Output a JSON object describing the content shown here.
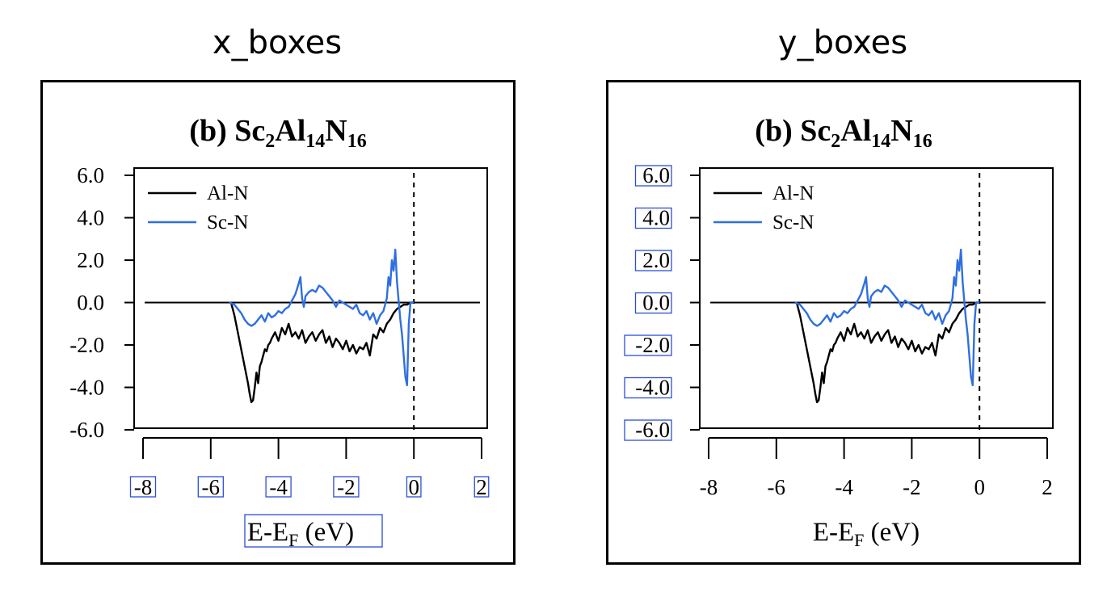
{
  "panels": {
    "left_label": "x_boxes",
    "right_label": "y_boxes"
  },
  "colors": {
    "al_n": "#000000",
    "sc_n": "#2f6fe0",
    "box": "#2b4fd8"
  },
  "chart_data": [
    {
      "type": "line",
      "title": "(b) Sc2Al14N16",
      "title_parts": {
        "prefix": "(b) ",
        "t1": "Sc",
        "s1": "2",
        "t2": "Al",
        "s2": "14",
        "t3": "N",
        "s3": "16"
      },
      "xlabel": "E-EF (eV)",
      "xlabel_parts": {
        "main": "E-E",
        "sub": "F",
        "unit": " (eV)"
      },
      "ylabel": "",
      "xlim": [
        -8,
        2
      ],
      "ylim": [
        -6,
        6
      ],
      "xticks": [
        -8,
        -6,
        -4,
        -2,
        0,
        2
      ],
      "xtick_labels": [
        "-8",
        "-6",
        "-4",
        "-2",
        "0",
        "2"
      ],
      "yticks": [
        6,
        4,
        2,
        0,
        -2,
        -4,
        -6
      ],
      "ytick_labels": [
        "6.0",
        "4.0",
        "2.0",
        "0.0",
        "-2.0",
        "-4.0",
        "-6.0"
      ],
      "legend": "top-left",
      "grid": false,
      "highlighted_labels": "x",
      "zero_line": {
        "x_range": [
          -8,
          2
        ],
        "y": 0
      },
      "fermi_line_x": 0,
      "series": [
        {
          "name": "Al-N",
          "x": [
            -5.4,
            -5.3,
            -5.2,
            -5.1,
            -5.0,
            -4.9,
            -4.85,
            -4.8,
            -4.75,
            -4.7,
            -4.65,
            -4.6,
            -4.55,
            -4.5,
            -4.45,
            -4.4,
            -4.35,
            -4.3,
            -4.25,
            -4.2,
            -4.1,
            -4.0,
            -3.9,
            -3.8,
            -3.7,
            -3.6,
            -3.5,
            -3.4,
            -3.3,
            -3.2,
            -3.1,
            -3.0,
            -2.9,
            -2.8,
            -2.7,
            -2.6,
            -2.5,
            -2.4,
            -2.3,
            -2.2,
            -2.1,
            -2.0,
            -1.9,
            -1.8,
            -1.7,
            -1.6,
            -1.5,
            -1.4,
            -1.3,
            -1.2,
            -1.1,
            -1.0,
            -0.9,
            -0.8,
            -0.7,
            -0.6,
            -0.5,
            -0.4,
            -0.3,
            -0.2,
            -0.1,
            0.0
          ],
          "y": [
            0.0,
            -0.6,
            -1.4,
            -2.2,
            -3.0,
            -3.8,
            -4.3,
            -4.7,
            -4.6,
            -4.0,
            -3.3,
            -3.8,
            -3.0,
            -2.8,
            -2.5,
            -2.2,
            -2.3,
            -2.0,
            -1.9,
            -1.7,
            -1.4,
            -1.8,
            -1.2,
            -1.5,
            -1.0,
            -1.6,
            -1.4,
            -1.7,
            -1.3,
            -1.9,
            -1.6,
            -1.4,
            -1.8,
            -1.5,
            -1.3,
            -1.9,
            -1.6,
            -2.1,
            -1.7,
            -1.9,
            -2.2,
            -1.8,
            -2.3,
            -2.0,
            -2.4,
            -2.1,
            -2.2,
            -1.9,
            -2.5,
            -1.5,
            -1.7,
            -1.2,
            -1.4,
            -1.0,
            -0.8,
            -0.5,
            -0.3,
            -0.2,
            -0.1,
            -0.1,
            0.0,
            0.0
          ]
        },
        {
          "name": "Sc-N",
          "x": [
            -5.45,
            -5.3,
            -5.2,
            -5.1,
            -5.0,
            -4.9,
            -4.8,
            -4.7,
            -4.6,
            -4.5,
            -4.4,
            -4.3,
            -4.2,
            -4.1,
            -4.0,
            -3.9,
            -3.8,
            -3.7,
            -3.6,
            -3.5,
            -3.4,
            -3.35,
            -3.3,
            -3.25,
            -3.2,
            -3.1,
            -3.0,
            -2.9,
            -2.8,
            -2.7,
            -2.6,
            -2.5,
            -2.4,
            -2.3,
            -2.2,
            -2.1,
            -2.0,
            -1.9,
            -1.8,
            -1.7,
            -1.6,
            -1.5,
            -1.4,
            -1.3,
            -1.2,
            -1.1,
            -1.0,
            -0.9,
            -0.8,
            -0.75,
            -0.7,
            -0.65,
            -0.6,
            -0.55,
            -0.5,
            -0.45,
            -0.4,
            -0.35,
            -0.3,
            -0.25,
            -0.2,
            -0.15,
            -0.1,
            0.0
          ],
          "y": [
            0.0,
            -0.1,
            -0.3,
            -0.5,
            -0.8,
            -1.0,
            -1.1,
            -1.0,
            -0.8,
            -0.6,
            -0.9,
            -0.5,
            -0.7,
            -0.6,
            -0.4,
            -0.5,
            -0.3,
            -0.2,
            0.1,
            0.4,
            0.9,
            1.2,
            0.2,
            -0.2,
            0.3,
            0.5,
            0.6,
            0.5,
            0.8,
            0.7,
            0.5,
            0.3,
            0.1,
            -0.2,
            0.1,
            0.0,
            -0.1,
            -0.2,
            -0.3,
            -0.1,
            -0.5,
            -0.6,
            -0.4,
            -0.8,
            -0.5,
            -1.0,
            -0.6,
            -0.4,
            0.2,
            1.2,
            0.8,
            2.0,
            1.5,
            2.5,
            1.0,
            0.1,
            -0.8,
            -1.5,
            -2.5,
            -3.5,
            -3.9,
            -1.0,
            0.0,
            0.0
          ]
        }
      ]
    },
    {
      "type": "line",
      "title": "(b) Sc2Al14N16",
      "title_parts": {
        "prefix": "(b) ",
        "t1": "Sc",
        "s1": "2",
        "t2": "Al",
        "s2": "14",
        "t3": "N",
        "s3": "16"
      },
      "xlabel": "E-EF (eV)",
      "xlabel_parts": {
        "main": "E-E",
        "sub": "F",
        "unit": " (eV)"
      },
      "ylabel": "",
      "xlim": [
        -8,
        2
      ],
      "ylim": [
        -6,
        6
      ],
      "xticks": [
        -8,
        -6,
        -4,
        -2,
        0,
        2
      ],
      "xtick_labels": [
        "-8",
        "-6",
        "-4",
        "-2",
        "0",
        "2"
      ],
      "yticks": [
        6,
        4,
        2,
        0,
        -2,
        -4,
        -6
      ],
      "ytick_labels": [
        "6.0",
        "4.0",
        "2.0",
        "0.0",
        "-2.0",
        "-4.0",
        "-6.0"
      ],
      "legend": "top-left",
      "grid": false,
      "highlighted_labels": "y",
      "zero_line": {
        "x_range": [
          -8,
          2
        ],
        "y": 0
      },
      "fermi_line_x": 0,
      "series": [
        {
          "name": "Al-N",
          "x": [
            -5.4,
            -5.3,
            -5.2,
            -5.1,
            -5.0,
            -4.9,
            -4.85,
            -4.8,
            -4.75,
            -4.7,
            -4.65,
            -4.6,
            -4.55,
            -4.5,
            -4.45,
            -4.4,
            -4.35,
            -4.3,
            -4.25,
            -4.2,
            -4.1,
            -4.0,
            -3.9,
            -3.8,
            -3.7,
            -3.6,
            -3.5,
            -3.4,
            -3.3,
            -3.2,
            -3.1,
            -3.0,
            -2.9,
            -2.8,
            -2.7,
            -2.6,
            -2.5,
            -2.4,
            -2.3,
            -2.2,
            -2.1,
            -2.0,
            -1.9,
            -1.8,
            -1.7,
            -1.6,
            -1.5,
            -1.4,
            -1.3,
            -1.2,
            -1.1,
            -1.0,
            -0.9,
            -0.8,
            -0.7,
            -0.6,
            -0.5,
            -0.4,
            -0.3,
            -0.2,
            -0.1,
            0.0
          ],
          "y": [
            0.0,
            -0.6,
            -1.4,
            -2.2,
            -3.0,
            -3.8,
            -4.3,
            -4.7,
            -4.6,
            -4.0,
            -3.3,
            -3.8,
            -3.0,
            -2.8,
            -2.5,
            -2.2,
            -2.3,
            -2.0,
            -1.9,
            -1.7,
            -1.4,
            -1.8,
            -1.2,
            -1.5,
            -1.0,
            -1.6,
            -1.4,
            -1.7,
            -1.3,
            -1.9,
            -1.6,
            -1.4,
            -1.8,
            -1.5,
            -1.3,
            -1.9,
            -1.6,
            -2.1,
            -1.7,
            -1.9,
            -2.2,
            -1.8,
            -2.3,
            -2.0,
            -2.4,
            -2.1,
            -2.2,
            -1.9,
            -2.5,
            -1.5,
            -1.7,
            -1.2,
            -1.4,
            -1.0,
            -0.8,
            -0.5,
            -0.3,
            -0.2,
            -0.1,
            -0.1,
            0.0,
            0.0
          ]
        },
        {
          "name": "Sc-N",
          "x": [
            -5.45,
            -5.3,
            -5.2,
            -5.1,
            -5.0,
            -4.9,
            -4.8,
            -4.7,
            -4.6,
            -4.5,
            -4.4,
            -4.3,
            -4.2,
            -4.1,
            -4.0,
            -3.9,
            -3.8,
            -3.7,
            -3.6,
            -3.5,
            -3.4,
            -3.35,
            -3.3,
            -3.25,
            -3.2,
            -3.1,
            -3.0,
            -2.9,
            -2.8,
            -2.7,
            -2.6,
            -2.5,
            -2.4,
            -2.3,
            -2.2,
            -2.1,
            -2.0,
            -1.9,
            -1.8,
            -1.7,
            -1.6,
            -1.5,
            -1.4,
            -1.3,
            -1.2,
            -1.1,
            -1.0,
            -0.9,
            -0.8,
            -0.75,
            -0.7,
            -0.65,
            -0.6,
            -0.55,
            -0.5,
            -0.45,
            -0.4,
            -0.35,
            -0.3,
            -0.25,
            -0.2,
            -0.15,
            -0.1,
            0.0
          ],
          "y": [
            0.0,
            -0.1,
            -0.3,
            -0.5,
            -0.8,
            -1.0,
            -1.1,
            -1.0,
            -0.8,
            -0.6,
            -0.9,
            -0.5,
            -0.7,
            -0.6,
            -0.4,
            -0.5,
            -0.3,
            -0.2,
            0.1,
            0.4,
            0.9,
            1.2,
            0.2,
            -0.2,
            0.3,
            0.5,
            0.6,
            0.5,
            0.8,
            0.7,
            0.5,
            0.3,
            0.1,
            -0.2,
            0.1,
            0.0,
            -0.1,
            -0.2,
            -0.3,
            -0.1,
            -0.5,
            -0.6,
            -0.4,
            -0.8,
            -0.5,
            -1.0,
            -0.6,
            -0.4,
            0.2,
            1.2,
            0.8,
            2.0,
            1.5,
            2.5,
            1.0,
            0.1,
            -0.8,
            -1.5,
            -2.5,
            -3.5,
            -3.9,
            -1.0,
            0.0,
            0.0
          ]
        }
      ]
    }
  ]
}
